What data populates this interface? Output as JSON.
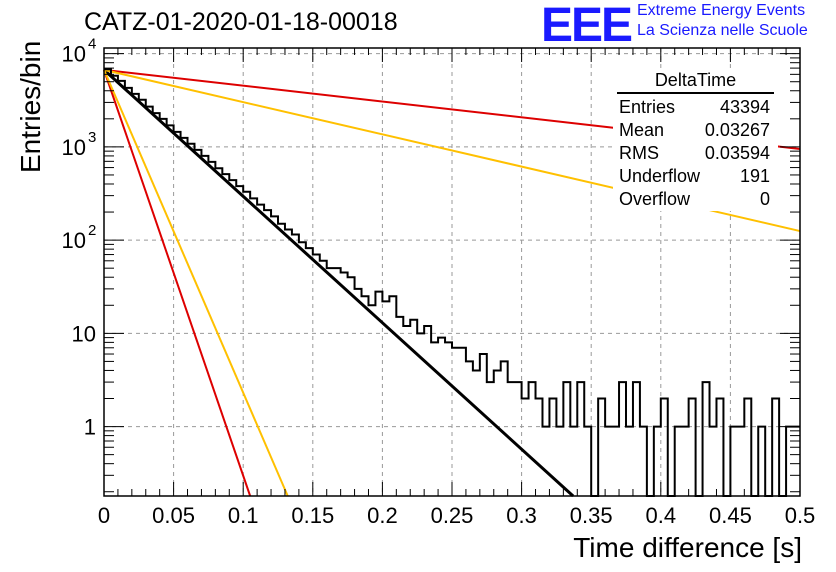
{
  "header": {
    "title": "CATZ-01-2020-01-18-00018",
    "logo_text": "EEE",
    "org_line1": "Extreme Energy Events",
    "org_line2": "La Scienza nelle Scuole"
  },
  "stats": {
    "title": "DeltaTime",
    "rows": [
      {
        "label": "Entries",
        "value": "43394"
      },
      {
        "label": "Mean",
        "value": "0.03267"
      },
      {
        "label": "RMS",
        "value": "0.03594"
      },
      {
        "label": "Underflow",
        "value": "191"
      },
      {
        "label": "Overflow",
        "value": "0"
      }
    ]
  },
  "chart_data": {
    "type": "line",
    "xlabel": "Time difference [s]",
    "ylabel": "Entries/bin",
    "xlim": [
      0,
      0.5
    ],
    "ylim": [
      0.18,
      11500
    ],
    "yscale": "log",
    "grid": true,
    "xticks": [
      "0",
      "0.05",
      "0.1",
      "0.15",
      "0.2",
      "0.25",
      "0.3",
      "0.35",
      "0.4",
      "0.45",
      "0.5"
    ],
    "yticks": [
      {
        "value": 1,
        "label": "1",
        "exp": ""
      },
      {
        "value": 10,
        "label": "10",
        "exp": ""
      },
      {
        "value": 100,
        "label": "10",
        "exp": "2"
      },
      {
        "value": 1000,
        "label": "10",
        "exp": "3"
      },
      {
        "value": 10000,
        "label": "10",
        "exp": "4"
      }
    ],
    "histogram": {
      "bin_width": 0.005,
      "values": [
        6800,
        5800,
        5100,
        4300,
        3700,
        3200,
        2700,
        2300,
        2000,
        1700,
        1450,
        1250,
        1080,
        930,
        800,
        690,
        590,
        510,
        440,
        380,
        330,
        280,
        240,
        210,
        180,
        150,
        130,
        115,
        95,
        82,
        70,
        60,
        50,
        50,
        45,
        40,
        30,
        25,
        20,
        28,
        22,
        25,
        15,
        12,
        14,
        10,
        12,
        8,
        9,
        8,
        7,
        7,
        5,
        4,
        6,
        3,
        4,
        5,
        3,
        3,
        2,
        3,
        2,
        1,
        2,
        1,
        3,
        1,
        3,
        1,
        0,
        2,
        1,
        1,
        3,
        1,
        3,
        1,
        0,
        1,
        2,
        0,
        1,
        1,
        2,
        0,
        3,
        1,
        2,
        0,
        1,
        1,
        2,
        0,
        1,
        0,
        2,
        0,
        1,
        1
      ]
    },
    "fit_lines": [
      {
        "color": "#000000",
        "x": [
          0,
          0.337
        ],
        "y": [
          6700,
          0.18
        ]
      },
      {
        "color": "#dd0000",
        "x": [
          0,
          0.5
        ],
        "y": [
          6700,
          950
        ]
      },
      {
        "color": "#ffc000",
        "x": [
          0,
          0.5
        ],
        "y": [
          6700,
          125
        ]
      },
      {
        "color": "#dd0000",
        "x": [
          0,
          0.105
        ],
        "y": [
          6700,
          0.18
        ]
      },
      {
        "color": "#ffc000",
        "x": [
          0,
          0.132
        ],
        "y": [
          6700,
          0.18
        ]
      }
    ]
  }
}
